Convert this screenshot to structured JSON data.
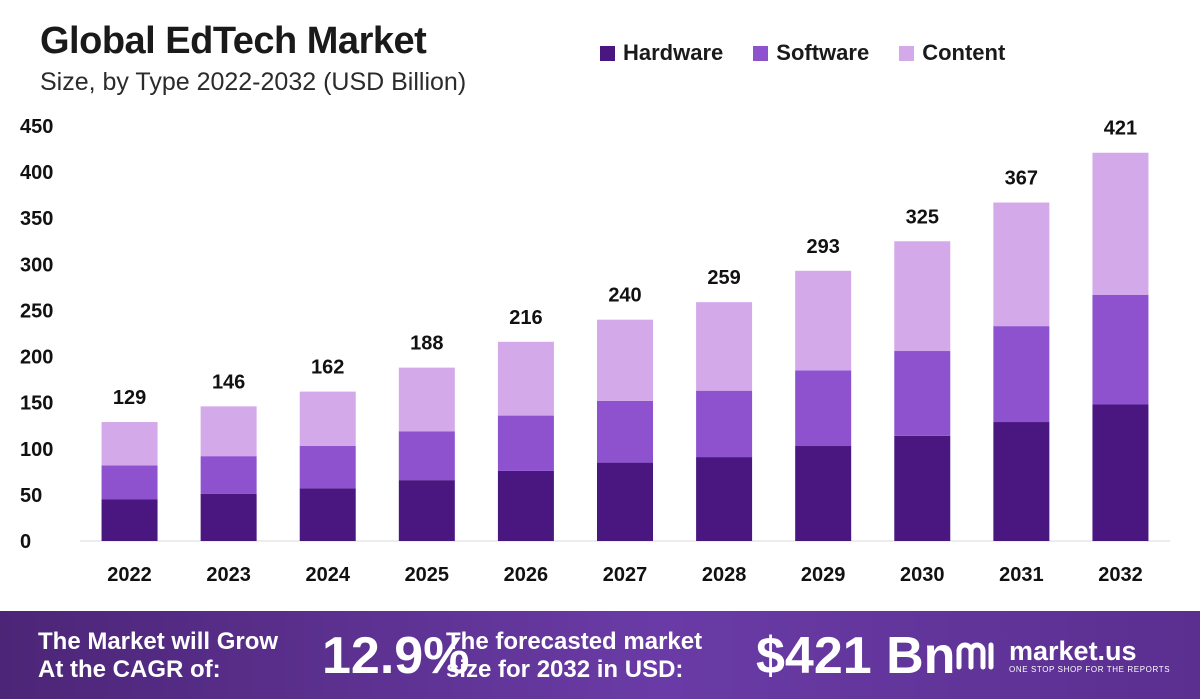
{
  "header": {
    "title": "Global EdTech Market",
    "subtitle": "Size, by Type 2022-2032 (USD Billion)"
  },
  "legend": [
    {
      "label": "Hardware",
      "color": "#4a1780"
    },
    {
      "label": "Software",
      "color": "#8e52cf"
    },
    {
      "label": "Content",
      "color": "#d3a9ea"
    }
  ],
  "chart_data": {
    "type": "bar",
    "stacked": true,
    "title": "Global EdTech Market",
    "subtitle": "Size, by Type 2022-2032 (USD Billion)",
    "categories": [
      "2022",
      "2023",
      "2024",
      "2025",
      "2026",
      "2027",
      "2028",
      "2029",
      "2030",
      "2031",
      "2032"
    ],
    "series": [
      {
        "name": "Hardware",
        "color": "#4a1780",
        "values": [
          45,
          51,
          57,
          66,
          76,
          85,
          91,
          103,
          114,
          129,
          148
        ]
      },
      {
        "name": "Software",
        "color": "#8e52cf",
        "values": [
          37,
          41,
          46,
          53,
          60,
          67,
          72,
          82,
          92,
          104,
          119
        ]
      },
      {
        "name": "Content",
        "color": "#d3a9ea",
        "values": [
          47,
          54,
          59,
          69,
          80,
          88,
          96,
          108,
          119,
          134,
          154
        ]
      }
    ],
    "totals": [
      129,
      146,
      162,
      188,
      216,
      240,
      259,
      293,
      325,
      367,
      421
    ],
    "yticks": [
      0,
      50,
      100,
      150,
      200,
      250,
      300,
      350,
      400,
      450
    ],
    "ylim": [
      0,
      450
    ],
    "xlabel": "",
    "ylabel": "",
    "grid": false,
    "legend_position": "top-right"
  },
  "footer": {
    "cagr_label_line1": "The Market will Grow",
    "cagr_label_line2": "At the CAGR of:",
    "cagr_value": "12.9%",
    "forecast_label_line1": "The forecasted market",
    "forecast_label_line2": "size for 2032 in USD:",
    "forecast_value": "$421 Bn",
    "brand_name": "market.us",
    "brand_tagline": "ONE STOP SHOP FOR THE REPORTS"
  }
}
